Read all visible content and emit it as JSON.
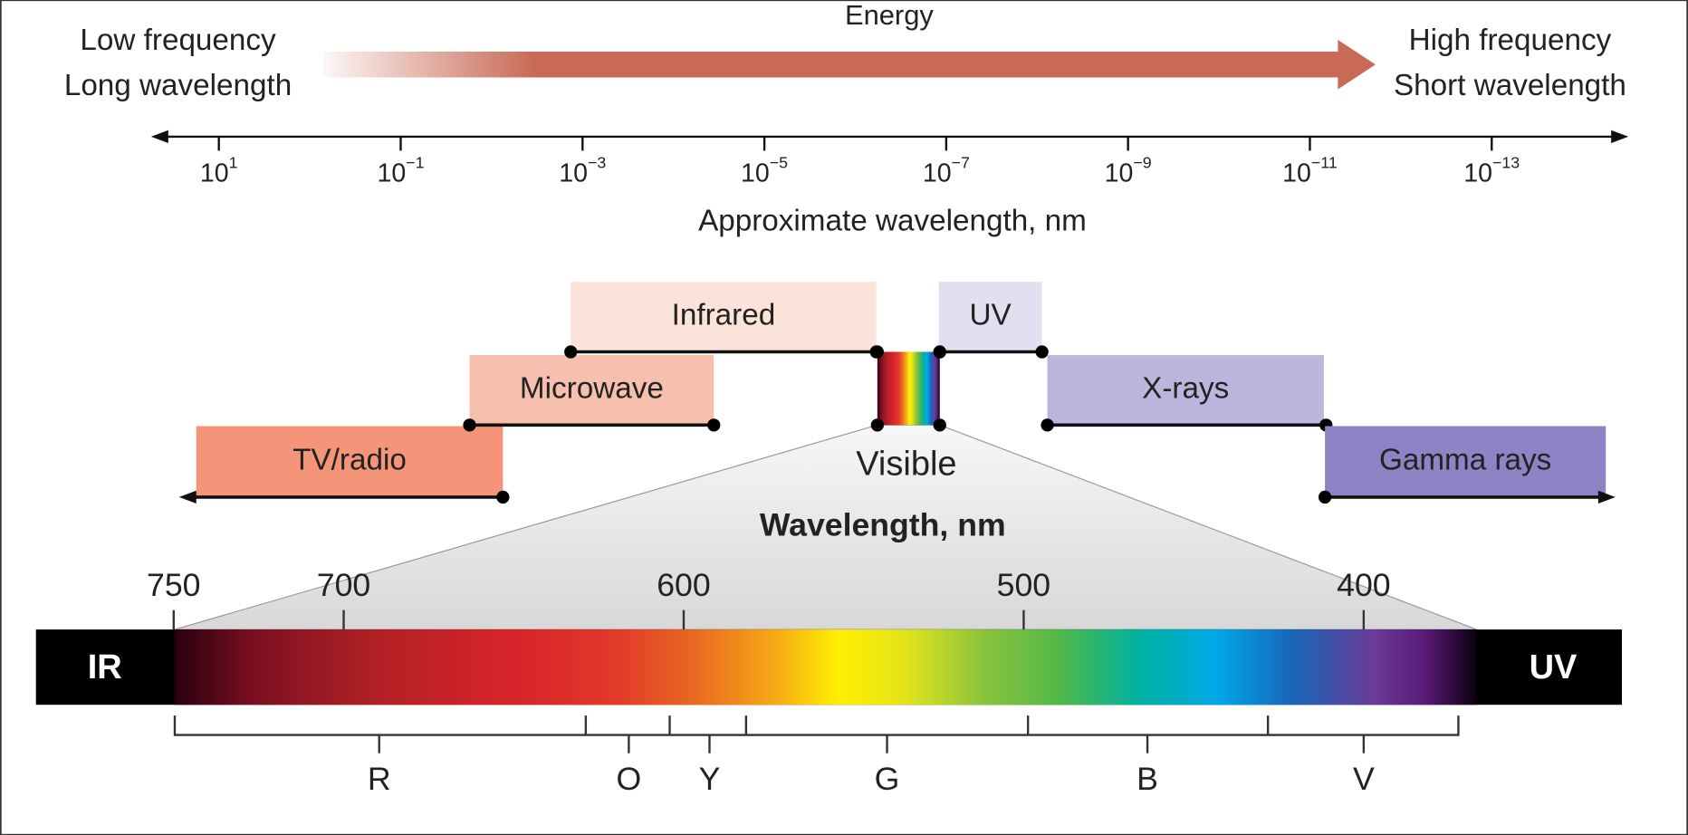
{
  "energy_label": "Energy",
  "left_labels": [
    "Low frequency",
    "Long wavelength"
  ],
  "right_labels": [
    "High frequency",
    "Short wavelength"
  ],
  "wavelength_axis": {
    "ticks": [
      {
        "base": "10",
        "exponent": "1"
      },
      {
        "base": "10",
        "exponent": "−1"
      },
      {
        "base": "10",
        "exponent": "−3"
      },
      {
        "base": "10",
        "exponent": "−5"
      },
      {
        "base": "10",
        "exponent": "−7"
      },
      {
        "base": "10",
        "exponent": "−9"
      },
      {
        "base": "10",
        "exponent": "−11"
      },
      {
        "base": "10",
        "exponent": "−13"
      }
    ],
    "label": "Approximate wavelength, nm"
  },
  "bands": [
    {
      "label": "TV/radio"
    },
    {
      "label": "Microwave"
    },
    {
      "label": "Infrared"
    },
    {
      "label": "UV"
    },
    {
      "label": "X-rays"
    },
    {
      "label": "Gamma rays"
    }
  ],
  "visible_label": "Visible",
  "spectrum": {
    "title": "Wavelength, nm",
    "ticks": [
      750,
      700,
      600,
      500,
      400
    ],
    "left_label": "IR",
    "right_label": "UV",
    "colors": [
      "R",
      "O",
      "Y",
      "G",
      "B",
      "V"
    ]
  }
}
